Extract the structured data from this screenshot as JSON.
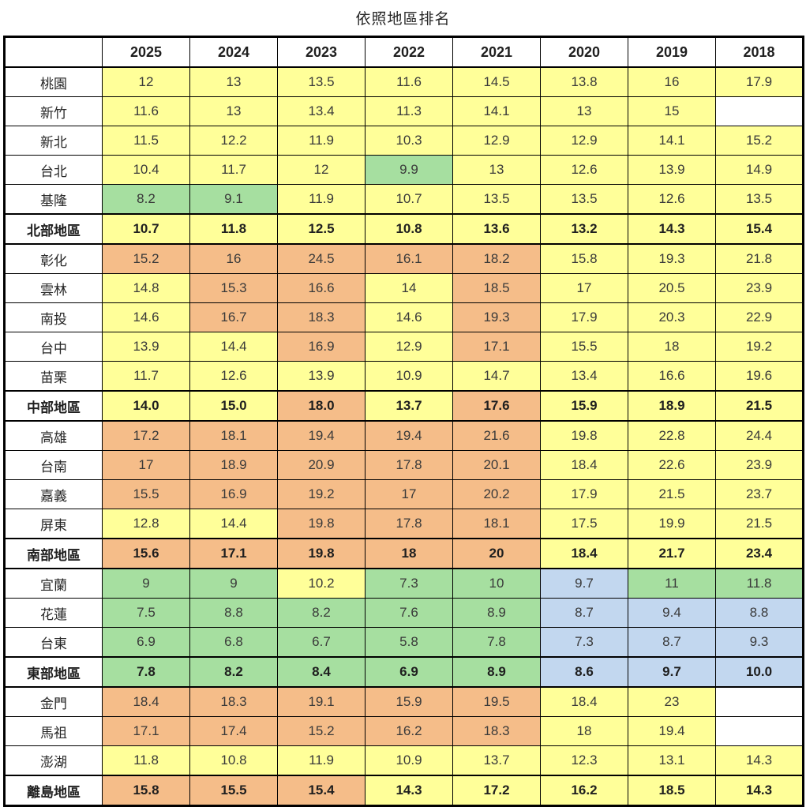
{
  "title": "依照地區排名",
  "cell_colors": {
    "y": "#FFFF99",
    "g": "#A6DFA0",
    "o": "#F5BD89",
    "b": "#C2D7EF",
    "w": "#FFFFFF"
  },
  "chart_data": {
    "type": "table",
    "title": "依照地區排名",
    "columns": [
      "",
      "2025",
      "2024",
      "2023",
      "2022",
      "2021",
      "2020",
      "2019",
      "2018"
    ],
    "rows": [
      {
        "label": "桃園",
        "summary": false,
        "values": [
          "12",
          "13",
          "13.5",
          "11.6",
          "14.5",
          "13.8",
          "16",
          "17.9"
        ],
        "colors": [
          "y",
          "y",
          "y",
          "y",
          "y",
          "y",
          "y",
          "y"
        ]
      },
      {
        "label": "新竹",
        "summary": false,
        "values": [
          "11.6",
          "13",
          "13.4",
          "11.3",
          "14.1",
          "13",
          "15",
          ""
        ],
        "colors": [
          "y",
          "y",
          "y",
          "y",
          "y",
          "y",
          "y",
          "w"
        ]
      },
      {
        "label": "新北",
        "summary": false,
        "values": [
          "11.5",
          "12.2",
          "11.9",
          "10.3",
          "12.9",
          "12.9",
          "14.1",
          "15.2"
        ],
        "colors": [
          "y",
          "y",
          "y",
          "y",
          "y",
          "y",
          "y",
          "y"
        ]
      },
      {
        "label": "台北",
        "summary": false,
        "values": [
          "10.4",
          "11.7",
          "12",
          "9.9",
          "13",
          "12.6",
          "13.9",
          "14.9"
        ],
        "colors": [
          "y",
          "y",
          "y",
          "g",
          "y",
          "y",
          "y",
          "y"
        ]
      },
      {
        "label": "基隆",
        "summary": false,
        "values": [
          "8.2",
          "9.1",
          "11.9",
          "10.7",
          "13.5",
          "13.5",
          "12.6",
          "13.5"
        ],
        "colors": [
          "g",
          "g",
          "y",
          "y",
          "y",
          "y",
          "y",
          "y"
        ]
      },
      {
        "label": "北部地區",
        "summary": true,
        "values": [
          "10.7",
          "11.8",
          "12.5",
          "10.8",
          "13.6",
          "13.2",
          "14.3",
          "15.4"
        ],
        "colors": [
          "y",
          "y",
          "y",
          "y",
          "y",
          "y",
          "y",
          "y"
        ]
      },
      {
        "label": "彰化",
        "summary": false,
        "values": [
          "15.2",
          "16",
          "24.5",
          "16.1",
          "18.2",
          "15.8",
          "19.3",
          "21.8"
        ],
        "colors": [
          "o",
          "o",
          "o",
          "o",
          "o",
          "y",
          "y",
          "y"
        ]
      },
      {
        "label": "雲林",
        "summary": false,
        "values": [
          "14.8",
          "15.3",
          "16.6",
          "14",
          "18.5",
          "17",
          "20.5",
          "23.9"
        ],
        "colors": [
          "y",
          "o",
          "o",
          "y",
          "o",
          "y",
          "y",
          "y"
        ]
      },
      {
        "label": "南投",
        "summary": false,
        "values": [
          "14.6",
          "16.7",
          "18.3",
          "14.6",
          "19.3",
          "17.9",
          "20.3",
          "22.9"
        ],
        "colors": [
          "y",
          "o",
          "o",
          "y",
          "o",
          "y",
          "y",
          "y"
        ]
      },
      {
        "label": "台中",
        "summary": false,
        "values": [
          "13.9",
          "14.4",
          "16.9",
          "12.9",
          "17.1",
          "15.5",
          "18",
          "19.2"
        ],
        "colors": [
          "y",
          "y",
          "o",
          "y",
          "o",
          "y",
          "y",
          "y"
        ]
      },
      {
        "label": "苗栗",
        "summary": false,
        "values": [
          "11.7",
          "12.6",
          "13.9",
          "10.9",
          "14.7",
          "13.4",
          "16.6",
          "19.6"
        ],
        "colors": [
          "y",
          "y",
          "y",
          "y",
          "y",
          "y",
          "y",
          "y"
        ]
      },
      {
        "label": "中部地區",
        "summary": true,
        "values": [
          "14.0",
          "15.0",
          "18.0",
          "13.7",
          "17.6",
          "15.9",
          "18.9",
          "21.5"
        ],
        "colors": [
          "y",
          "y",
          "o",
          "y",
          "o",
          "y",
          "y",
          "y"
        ]
      },
      {
        "label": "高雄",
        "summary": false,
        "values": [
          "17.2",
          "18.1",
          "19.4",
          "19.4",
          "21.6",
          "19.8",
          "22.8",
          "24.4"
        ],
        "colors": [
          "o",
          "o",
          "o",
          "o",
          "o",
          "y",
          "y",
          "y"
        ]
      },
      {
        "label": "台南",
        "summary": false,
        "values": [
          "17",
          "18.9",
          "20.9",
          "17.8",
          "20.1",
          "18.4",
          "22.6",
          "23.9"
        ],
        "colors": [
          "o",
          "o",
          "o",
          "o",
          "o",
          "y",
          "y",
          "y"
        ]
      },
      {
        "label": "嘉義",
        "summary": false,
        "values": [
          "15.5",
          "16.9",
          "19.2",
          "17",
          "20.2",
          "17.9",
          "21.5",
          "23.7"
        ],
        "colors": [
          "o",
          "o",
          "o",
          "o",
          "o",
          "y",
          "y",
          "y"
        ]
      },
      {
        "label": "屏東",
        "summary": false,
        "values": [
          "12.8",
          "14.4",
          "19.8",
          "17.8",
          "18.1",
          "17.5",
          "19.9",
          "21.5"
        ],
        "colors": [
          "y",
          "y",
          "o",
          "o",
          "o",
          "y",
          "y",
          "y"
        ]
      },
      {
        "label": "南部地區",
        "summary": true,
        "values": [
          "15.6",
          "17.1",
          "19.8",
          "18",
          "20",
          "18.4",
          "21.7",
          "23.4"
        ],
        "colors": [
          "o",
          "o",
          "o",
          "o",
          "o",
          "y",
          "y",
          "y"
        ]
      },
      {
        "label": "宜蘭",
        "summary": false,
        "values": [
          "9",
          "9",
          "10.2",
          "7.3",
          "10",
          "9.7",
          "11",
          "11.8"
        ],
        "colors": [
          "g",
          "g",
          "y",
          "g",
          "g",
          "b",
          "g",
          "g"
        ]
      },
      {
        "label": "花蓮",
        "summary": false,
        "values": [
          "7.5",
          "8.8",
          "8.2",
          "7.6",
          "8.9",
          "8.7",
          "9.4",
          "8.8"
        ],
        "colors": [
          "g",
          "g",
          "g",
          "g",
          "g",
          "b",
          "b",
          "b"
        ]
      },
      {
        "label": "台東",
        "summary": false,
        "values": [
          "6.9",
          "6.8",
          "6.7",
          "5.8",
          "7.8",
          "7.3",
          "8.7",
          "9.3"
        ],
        "colors": [
          "g",
          "g",
          "g",
          "g",
          "g",
          "b",
          "b",
          "b"
        ]
      },
      {
        "label": "東部地區",
        "summary": true,
        "values": [
          "7.8",
          "8.2",
          "8.4",
          "6.9",
          "8.9",
          "8.6",
          "9.7",
          "10.0"
        ],
        "colors": [
          "g",
          "g",
          "g",
          "g",
          "g",
          "b",
          "b",
          "b"
        ]
      },
      {
        "label": "金門",
        "summary": false,
        "values": [
          "18.4",
          "18.3",
          "19.1",
          "15.9",
          "19.5",
          "18.4",
          "23",
          ""
        ],
        "colors": [
          "o",
          "o",
          "o",
          "o",
          "o",
          "y",
          "y",
          "w"
        ]
      },
      {
        "label": "馬祖",
        "summary": false,
        "values": [
          "17.1",
          "17.4",
          "15.2",
          "16.2",
          "18.3",
          "18",
          "19.4",
          ""
        ],
        "colors": [
          "o",
          "o",
          "o",
          "o",
          "o",
          "y",
          "y",
          "w"
        ]
      },
      {
        "label": "澎湖",
        "summary": false,
        "values": [
          "11.8",
          "10.8",
          "11.9",
          "10.9",
          "13.7",
          "12.3",
          "13.1",
          "14.3"
        ],
        "colors": [
          "y",
          "y",
          "y",
          "y",
          "y",
          "y",
          "y",
          "y"
        ]
      },
      {
        "label": "離島地區",
        "summary": true,
        "values": [
          "15.8",
          "15.5",
          "15.4",
          "14.3",
          "17.2",
          "16.2",
          "18.5",
          "14.3"
        ],
        "colors": [
          "o",
          "o",
          "o",
          "y",
          "y",
          "y",
          "y",
          "y"
        ]
      }
    ]
  }
}
